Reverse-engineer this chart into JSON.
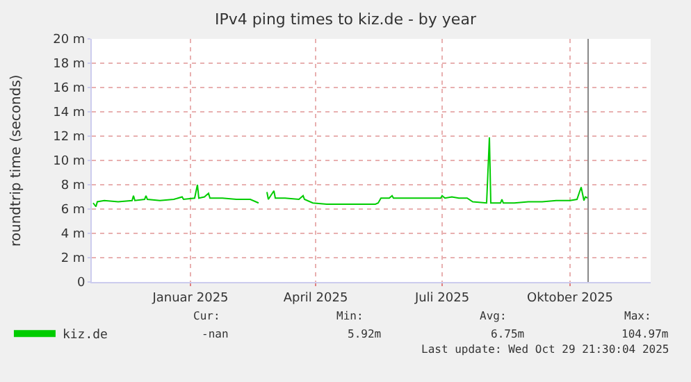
{
  "chart_data": {
    "type": "line",
    "title": "IPv4 ping times to kiz.de - by year",
    "ylabel": "roundtrip time (seconds)",
    "x": [
      "2024-10-23",
      "2024-10-25",
      "2024-10-26",
      "2024-10-31",
      "2024-11-10",
      "2024-11-20",
      "2024-11-21",
      "2024-11-22",
      "2024-11-29",
      "2024-11-30",
      "2024-12-01",
      "2024-12-10",
      "2024-12-20",
      "2024-12-26",
      "2024-12-27",
      "2025-01-04",
      "2025-01-06",
      "2025-01-07",
      "2025-01-11",
      "2025-01-14",
      "2025-01-15",
      "2025-01-24",
      "2025-02-03",
      "2025-02-13",
      "2025-02-19",
      "2025-02-22",
      "2025-02-25",
      "2025-02-26",
      "2025-03-02",
      "2025-03-03",
      "2025-03-10",
      "2025-03-20",
      "2025-03-23",
      "2025-03-24",
      "2025-03-30",
      "2025-04-09",
      "2025-04-24",
      "2025-05-04",
      "2025-05-14",
      "2025-05-16",
      "2025-05-18",
      "2025-05-24",
      "2025-05-26",
      "2025-05-27",
      "2025-06-03",
      "2025-06-13",
      "2025-06-23",
      "2025-06-30",
      "2025-07-01",
      "2025-07-03",
      "2025-07-08",
      "2025-07-13",
      "2025-07-19",
      "2025-07-23",
      "2025-08-02",
      "2025-08-04",
      "2025-08-05",
      "2025-08-12",
      "2025-08-13",
      "2025-08-14",
      "2025-08-22",
      "2025-09-01",
      "2025-09-11",
      "2025-09-21",
      "2025-10-01",
      "2025-10-06",
      "2025-10-09",
      "2025-10-11",
      "2025-10-12",
      "2025-10-14"
    ],
    "series": [
      {
        "name": "kiz.de",
        "color": "#00cc00",
        "values": [
          6.5,
          6.2,
          6.6,
          6.7,
          6.6,
          6.7,
          7.1,
          6.7,
          6.8,
          7.1,
          6.8,
          6.7,
          6.8,
          7.0,
          6.8,
          6.9,
          8.0,
          6.9,
          7.0,
          7.3,
          6.9,
          6.9,
          6.8,
          6.8,
          6.5,
          null,
          7.4,
          6.8,
          7.5,
          6.9,
          6.9,
          6.8,
          7.1,
          6.8,
          6.5,
          6.4,
          6.4,
          6.4,
          6.4,
          6.5,
          6.9,
          6.9,
          7.1,
          6.9,
          6.9,
          6.9,
          6.9,
          6.9,
          7.1,
          6.9,
          7.0,
          6.9,
          6.9,
          6.6,
          6.5,
          11.9,
          6.5,
          6.5,
          6.8,
          6.5,
          6.5,
          6.6,
          6.6,
          6.7,
          6.7,
          6.8,
          7.8,
          6.7,
          7.0,
          6.9
        ]
      }
    ],
    "xlim": [
      "2024-10-22",
      "2025-11-28"
    ],
    "xticks": [
      {
        "value": "2025-01-01",
        "label": "Januar 2025"
      },
      {
        "value": "2025-04-01",
        "label": "April 2025"
      },
      {
        "value": "2025-07-01",
        "label": "Juli 2025"
      },
      {
        "value": "2025-10-01",
        "label": "Oktober 2025"
      }
    ],
    "ylim": [
      0,
      20
    ],
    "yticks": [
      0,
      {
        "value": 2,
        "label": "2 m"
      },
      {
        "value": 4,
        "label": "4 m"
      },
      {
        "value": 6,
        "label": "6 m"
      },
      {
        "value": 8,
        "label": "8 m"
      },
      {
        "value": 10,
        "label": "10 m"
      },
      {
        "value": 12,
        "label": "12 m"
      },
      {
        "value": 14,
        "label": "14 m"
      },
      {
        "value": 16,
        "label": "16 m"
      },
      {
        "value": 18,
        "label": "18 m"
      },
      {
        "value": 20,
        "label": "20 m"
      }
    ],
    "ref_lines": [
      {
        "axis": "x",
        "value": "2025-10-14",
        "color": "#888888"
      }
    ],
    "grid": true,
    "legend": "bottom left",
    "marker": "none",
    "line_style": "solid",
    "annotations": [
      "Cur:",
      "Min:",
      "Avg:",
      "Max:",
      "-nan",
      "5.92m",
      "6.75m",
      "104.97m",
      "Last update: Wed Oct 29 21:30:04 2025"
    ]
  }
}
